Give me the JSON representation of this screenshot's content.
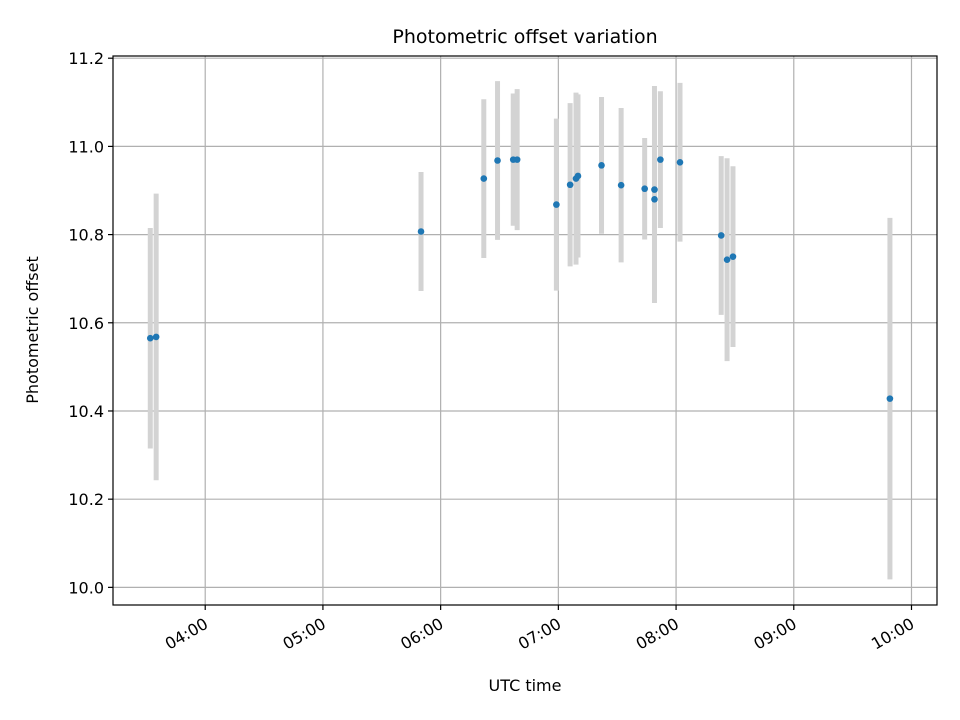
{
  "chart_data": {
    "type": "scatter",
    "title": "Photometric offset variation",
    "xlabel": "UTC time",
    "ylabel": "Photometric offset",
    "x_ticks": [
      "04:00",
      "05:00",
      "06:00",
      "07:00",
      "08:00",
      "09:00",
      "10:00"
    ],
    "y_ticks": [
      "10.0",
      "10.2",
      "10.4",
      "10.6",
      "10.8",
      "11.0",
      "11.2"
    ],
    "xlim": [
      "03:13",
      "10:13"
    ],
    "ylim": [
      9.96,
      11.205
    ],
    "grid": true,
    "errorbar_color": "#d3d3d3",
    "marker_color": "#1f77b4",
    "points": [
      {
        "x": "03:32",
        "y": 10.565,
        "err": 0.25
      },
      {
        "x": "03:35",
        "y": 10.568,
        "err": 0.325
      },
      {
        "x": "05:50",
        "y": 10.807,
        "err": 0.135
      },
      {
        "x": "06:22",
        "y": 10.927,
        "err": 0.18
      },
      {
        "x": "06:29",
        "y": 10.968,
        "err": 0.18
      },
      {
        "x": "06:37",
        "y": 10.97,
        "err": 0.15
      },
      {
        "x": "06:39",
        "y": 10.97,
        "err": 0.16
      },
      {
        "x": "06:59",
        "y": 10.868,
        "err": 0.195
      },
      {
        "x": "07:06",
        "y": 10.913,
        "err": 0.185
      },
      {
        "x": "07:09",
        "y": 10.927,
        "err": 0.195
      },
      {
        "x": "07:10",
        "y": 10.933,
        "err": 0.185
      },
      {
        "x": "07:22",
        "y": 10.957,
        "err": 0.155
      },
      {
        "x": "07:32",
        "y": 10.912,
        "err": 0.175
      },
      {
        "x": "07:44",
        "y": 10.904,
        "err": 0.115
      },
      {
        "x": "07:49",
        "y": 10.88,
        "err": 0.235
      },
      {
        "x": "07:49",
        "y": 10.902,
        "err": 0.235
      },
      {
        "x": "07:52",
        "y": 10.97,
        "err": 0.155
      },
      {
        "x": "08:02",
        "y": 10.964,
        "err": 0.18
      },
      {
        "x": "08:23",
        "y": 10.798,
        "err": 0.18
      },
      {
        "x": "08:26",
        "y": 10.743,
        "err": 0.23
      },
      {
        "x": "08:29",
        "y": 10.75,
        "err": 0.205
      },
      {
        "x": "09:49",
        "y": 10.428,
        "err": 0.41
      }
    ]
  }
}
